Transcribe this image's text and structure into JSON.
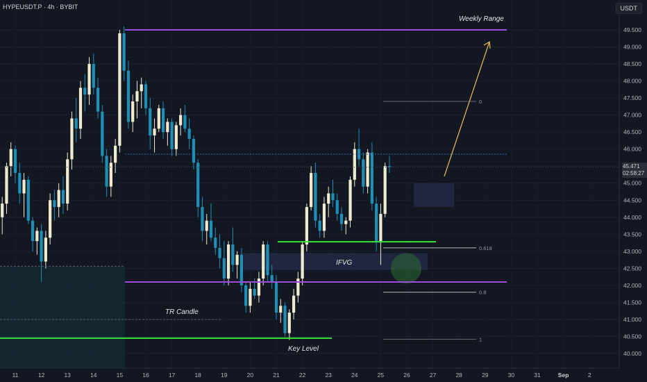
{
  "header": {
    "symbol_info": "HYPEUSDT.P · 4h · BYBIT",
    "currency_button": "USDT"
  },
  "price_tag": {
    "price": "45.471",
    "countdown": "02:58:27"
  },
  "colors": {
    "background": "#131722",
    "bull_candle": "#f0ebd0",
    "bear_candle": "#1f8fb5",
    "weekly_range_line": "#9d4edd",
    "key_level_line": "#39e639",
    "fib_line": "#b7b9c0",
    "arrow": "#e0b654"
  },
  "chart_data": {
    "type": "candlestick",
    "timeframe": "4h",
    "y_axis_labels": [
      "49.500",
      "49.000",
      "48.500",
      "48.000",
      "47.500",
      "47.000",
      "46.500",
      "46.000",
      "45.500",
      "45.000",
      "44.500",
      "44.000",
      "43.500",
      "43.000",
      "42.500",
      "42.000",
      "41.500",
      "41.000",
      "40.500",
      "40.000"
    ],
    "x_axis_labels": [
      "11",
      "12",
      "13",
      "14",
      "15",
      "16",
      "17",
      "18",
      "19",
      "20",
      "21",
      "22",
      "23",
      "24",
      "25",
      "26",
      "27",
      "28",
      "29",
      "30",
      "31",
      "Sep",
      "2"
    ],
    "ylim": [
      39.6,
      50.4
    ],
    "candles_ohlc": [
      [
        44.0,
        44.6,
        43.5,
        44.4
      ],
      [
        44.4,
        45.6,
        44.1,
        45.5
      ],
      [
        45.5,
        46.2,
        45.2,
        46.0
      ],
      [
        46.0,
        46.1,
        45.0,
        45.3
      ],
      [
        45.3,
        45.6,
        44.4,
        44.7
      ],
      [
        44.7,
        45.3,
        44.0,
        45.1
      ],
      [
        45.1,
        45.2,
        43.8,
        43.9
      ],
      [
        43.9,
        44.0,
        43.0,
        43.3
      ],
      [
        43.3,
        43.7,
        42.9,
        43.6
      ],
      [
        43.6,
        43.8,
        42.1,
        42.7
      ],
      [
        42.7,
        43.6,
        42.5,
        43.4
      ],
      [
        43.4,
        44.7,
        43.2,
        44.5
      ],
      [
        44.5,
        44.8,
        43.9,
        44.3
      ],
      [
        44.3,
        45.0,
        44.0,
        44.8
      ],
      [
        44.8,
        45.2,
        44.1,
        44.4
      ],
      [
        44.4,
        45.9,
        44.2,
        45.7
      ],
      [
        45.7,
        47.1,
        45.4,
        46.9
      ],
      [
        46.9,
        47.5,
        46.2,
        46.6
      ],
      [
        46.6,
        48.0,
        46.3,
        47.8
      ],
      [
        47.8,
        48.2,
        47.1,
        47.6
      ],
      [
        47.6,
        48.7,
        47.3,
        48.5
      ],
      [
        48.5,
        48.8,
        47.6,
        47.8
      ],
      [
        47.8,
        48.1,
        46.9,
        47.1
      ],
      [
        47.1,
        47.3,
        45.6,
        45.8
      ],
      [
        45.8,
        46.0,
        44.6,
        44.9
      ],
      [
        44.9,
        45.8,
        44.6,
        45.6
      ],
      [
        45.6,
        46.3,
        45.3,
        46.1
      ],
      [
        46.1,
        49.5,
        45.9,
        49.4
      ],
      [
        49.4,
        49.6,
        48.0,
        48.3
      ],
      [
        48.3,
        48.6,
        46.6,
        46.8
      ],
      [
        46.8,
        47.6,
        46.5,
        47.4
      ],
      [
        47.4,
        48.0,
        46.9,
        47.7
      ],
      [
        47.7,
        48.1,
        47.2,
        47.9
      ],
      [
        47.9,
        48.0,
        47.0,
        47.2
      ],
      [
        47.2,
        47.5,
        46.0,
        46.4
      ],
      [
        46.4,
        46.9,
        45.9,
        46.6
      ],
      [
        46.6,
        47.3,
        46.5,
        47.2
      ],
      [
        47.2,
        47.4,
        46.3,
        46.5
      ],
      [
        46.5,
        46.9,
        46.1,
        46.8
      ],
      [
        46.8,
        46.9,
        45.8,
        46.0
      ],
      [
        46.0,
        46.8,
        45.8,
        46.7
      ],
      [
        46.7,
        47.2,
        46.4,
        47.0
      ],
      [
        47.0,
        47.3,
        46.5,
        46.6
      ],
      [
        46.6,
        46.9,
        46.0,
        46.3
      ],
      [
        46.3,
        46.4,
        45.4,
        45.6
      ],
      [
        45.6,
        45.7,
        44.0,
        44.3
      ],
      [
        44.3,
        44.6,
        43.3,
        43.6
      ],
      [
        43.6,
        44.1,
        43.2,
        43.9
      ],
      [
        43.9,
        44.4,
        43.3,
        43.4
      ],
      [
        43.4,
        43.7,
        42.9,
        43.1
      ],
      [
        43.1,
        43.5,
        42.5,
        42.8
      ],
      [
        42.8,
        43.3,
        42.0,
        42.2
      ],
      [
        42.2,
        43.3,
        42.0,
        43.2
      ],
      [
        43.2,
        43.7,
        42.4,
        42.6
      ],
      [
        42.6,
        43.0,
        42.2,
        42.9
      ],
      [
        42.9,
        43.1,
        41.8,
        42.0
      ],
      [
        42.0,
        42.1,
        41.2,
        41.4
      ],
      [
        41.4,
        42.1,
        41.2,
        41.9
      ],
      [
        41.9,
        42.2,
        41.6,
        41.7
      ],
      [
        41.7,
        42.4,
        41.5,
        42.2
      ],
      [
        42.2,
        43.3,
        42.0,
        43.2
      ],
      [
        43.2,
        43.3,
        42.1,
        42.3
      ],
      [
        42.3,
        42.6,
        41.9,
        42.1
      ],
      [
        42.1,
        42.3,
        41.0,
        41.2
      ],
      [
        41.2,
        41.6,
        40.9,
        41.4
      ],
      [
        41.4,
        41.5,
        40.5,
        40.6
      ],
      [
        40.6,
        41.3,
        40.4,
        41.2
      ],
      [
        41.2,
        41.9,
        41.0,
        41.7
      ],
      [
        41.7,
        42.4,
        41.5,
        42.2
      ],
      [
        42.2,
        43.3,
        42.0,
        43.2
      ],
      [
        43.2,
        44.4,
        43.0,
        44.3
      ],
      [
        44.3,
        45.5,
        44.2,
        45.3
      ],
      [
        45.3,
        45.6,
        43.7,
        43.9
      ],
      [
        43.9,
        44.1,
        43.4,
        43.6
      ],
      [
        43.6,
        44.6,
        43.4,
        44.4
      ],
      [
        44.4,
        44.9,
        44.0,
        44.7
      ],
      [
        44.7,
        45.1,
        44.3,
        44.5
      ],
      [
        44.5,
        44.7,
        43.9,
        44.1
      ],
      [
        44.1,
        44.3,
        43.6,
        43.8
      ],
      [
        43.8,
        44.0,
        43.5,
        43.9
      ],
      [
        43.9,
        45.2,
        43.7,
        45.1
      ],
      [
        45.1,
        46.2,
        44.9,
        46.0
      ],
      [
        46.0,
        46.6,
        45.5,
        45.7
      ],
      [
        45.7,
        45.9,
        44.7,
        44.9
      ],
      [
        44.9,
        46.0,
        44.7,
        45.9
      ],
      [
        45.9,
        46.2,
        44.2,
        44.4
      ],
      [
        44.4,
        44.6,
        43.0,
        43.3
      ],
      [
        43.3,
        44.4,
        42.6,
        44.1
      ],
      [
        44.1,
        45.6,
        44.0,
        45.5
      ],
      [
        45.5,
        45.8,
        45.3,
        45.471
      ]
    ],
    "annotations": {
      "weekly_range_label": "Weekly Range",
      "ifvg_label": "IFVG",
      "tr_candle_label": "TR Candle",
      "key_level_label": "Key Level",
      "fib_0618": "0.618",
      "fib_08": "0.8",
      "fib_0": "0",
      "fib_1": "1"
    },
    "levels": {
      "weekly_high": 49.5,
      "weekly_low": 42.1,
      "key_level": 40.45,
      "range_marker": 43.28,
      "fib_0": 47.4,
      "fib_0618": 43.1,
      "fib_08": 41.8,
      "fib_1": 40.42,
      "current_price": 45.471,
      "dotted_high": 45.85
    }
  }
}
